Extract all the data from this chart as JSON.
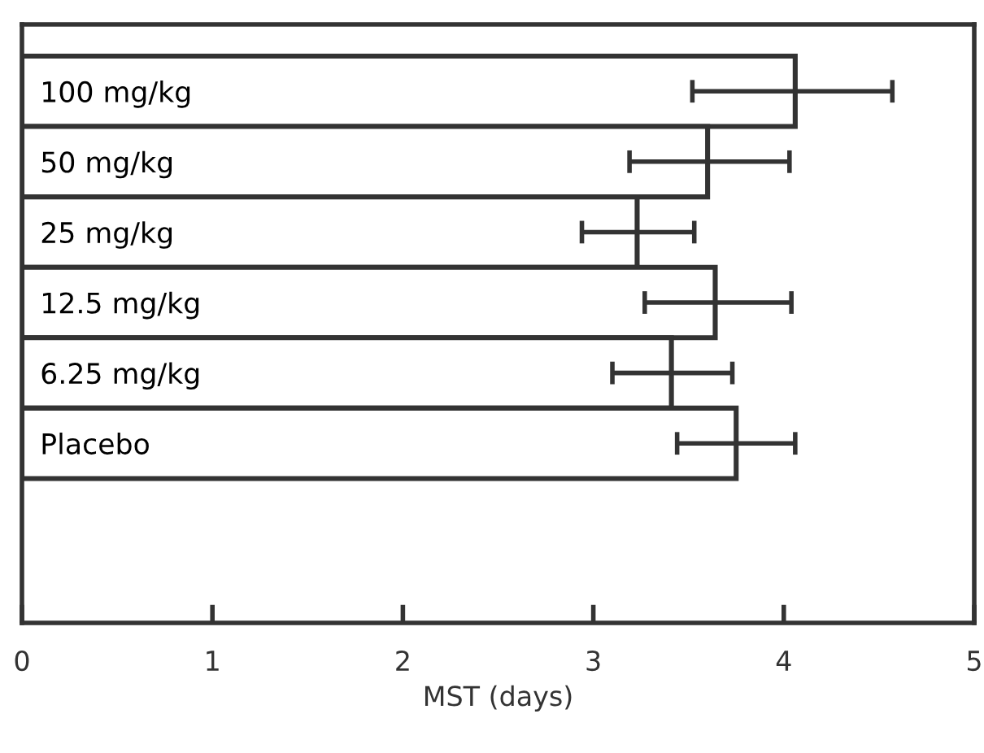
{
  "chart_data": {
    "type": "bar",
    "orientation": "horizontal",
    "xlabel": "MST (days)",
    "categories": [
      "100 mg/kg",
      "50 mg/kg",
      "25 mg/kg",
      "12.5 mg/kg",
      "6.25 mg/kg",
      "Placebo"
    ],
    "values": [
      4.06,
      3.6,
      3.23,
      3.64,
      3.41,
      3.75
    ],
    "errors": [
      [
        3.52,
        4.57
      ],
      [
        3.19,
        4.03
      ],
      [
        2.94,
        3.53
      ],
      [
        3.27,
        4.04
      ],
      [
        3.1,
        3.73
      ],
      [
        3.44,
        4.06
      ]
    ],
    "color": "#ffffff",
    "xlim": [
      0,
      5
    ],
    "xticks": [
      0,
      1,
      2,
      3,
      4,
      5
    ],
    "grid": false,
    "legend": false
  }
}
